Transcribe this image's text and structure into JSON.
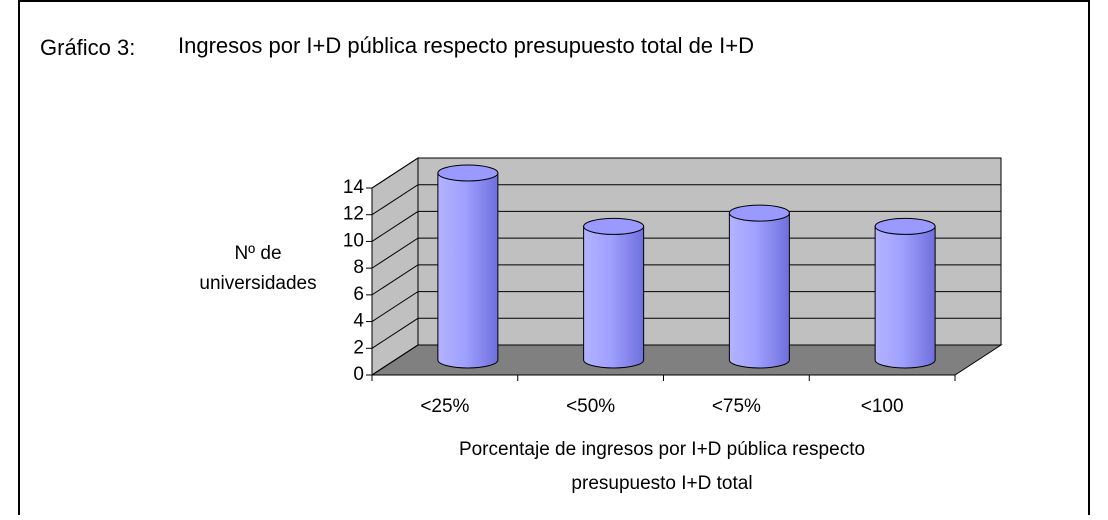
{
  "chart_data": {
    "type": "bar3d",
    "title": [
      "Gráfico 3:",
      "Ingresos por I+D pública respecto presupuesto total de I+D"
    ],
    "ylabel": [
      "Nº de",
      "universidades"
    ],
    "xlabel": [
      "Porcentaje de ingresos por I+D pública respecto",
      "presupuesto I+D total"
    ],
    "categories": [
      "<25%",
      "<50%",
      "<75%",
      "<100"
    ],
    "values": [
      14,
      10,
      11,
      10
    ],
    "color": "#9999ff",
    "ylim": [
      0,
      14
    ],
    "yticks": [
      0,
      2,
      4,
      6,
      8,
      10,
      12,
      14
    ],
    "grid": true
  }
}
